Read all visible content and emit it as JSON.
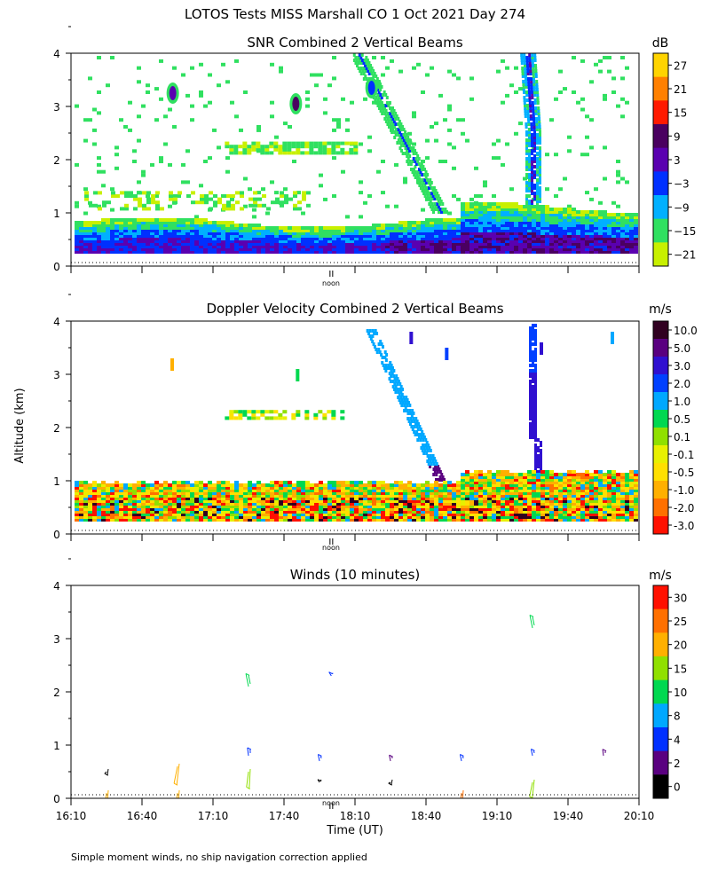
{
  "main_title": "LOTOS Tests MISS Marshall CO   1 Oct 2021 Day 274",
  "y_axis_label": "Altitude (km)",
  "x_axis_label": "Time (UT)",
  "noon_label": "noon",
  "footnote": "Simple moment winds, no ship navigation correction applied",
  "chart_data": [
    {
      "type": "heatmap",
      "title": "SNR Combined 2 Vertical Beams",
      "colorbar_unit": "dB",
      "colorbar_labels": [
        "27",
        "21",
        "15",
        "9",
        "3",
        "−3",
        "−9",
        "−15",
        "−21"
      ],
      "colorbar_colors": [
        "#ffd400",
        "#ff8000",
        "#ff1a00",
        "#4a0060",
        "#5a00b0",
        "#0030ff",
        "#00b0ff",
        "#30e060",
        "#c8f000"
      ],
      "ylim": [
        0,
        4
      ],
      "yticks": [
        "0",
        "1",
        "2",
        "3",
        "4"
      ],
      "xlim": [
        "16:10",
        "20:10"
      ],
      "description_features": [
        {
          "kind": "layer",
          "ymin": 0.25,
          "ymax": 0.8,
          "values_db": [
            -12,
            3,
            9,
            3
          ]
        },
        {
          "kind": "plume",
          "time": "18:45",
          "ymin": 1.0,
          "ymax": 3.9,
          "value_db": -18
        },
        {
          "kind": "plume",
          "time": "19:24",
          "ymin": 0.9,
          "ymax": 3.9,
          "value_db": -12
        },
        {
          "kind": "layer",
          "ymin": 2.1,
          "ymax": 2.3,
          "value_db": -20
        },
        {
          "kind": "layer",
          "ymin": 1.1,
          "ymax": 1.4,
          "value_db": -20
        },
        {
          "kind": "blob",
          "time": "16:53",
          "y": 3.2,
          "value_db": 3
        },
        {
          "kind": "blob",
          "time": "17:45",
          "y": 3.0,
          "value_db": 9
        }
      ]
    },
    {
      "type": "heatmap",
      "title": "Doppler Velocity Combined 2 Vertical Beams",
      "colorbar_unit": "m/s",
      "colorbar_labels": [
        "10.0",
        "5.0",
        "3.0",
        "2.0",
        "1.0",
        "0.5",
        "0.1",
        "-0.1",
        "-0.5",
        "-1.0",
        "-2.0",
        "-3.0"
      ],
      "colorbar_colors": [
        "#300020",
        "#5a0080",
        "#3010d0",
        "#0040ff",
        "#00a8ff",
        "#00d850",
        "#90e000",
        "#e8f000",
        "#ffe000",
        "#ffb000",
        "#ff7000",
        "#ff1000"
      ],
      "ylim": [
        0,
        4
      ],
      "yticks": [
        "0",
        "1",
        "2",
        "3",
        "4"
      ],
      "xlim": [
        "16:10",
        "20:10"
      ],
      "description_features": [
        {
          "kind": "layer",
          "ymin": 0.25,
          "ymax": 0.8,
          "values_ms": [
            -0.5,
            -1.0,
            0.1,
            -2.0
          ]
        },
        {
          "kind": "plume",
          "time": "18:45",
          "ymin": 1.0,
          "ymax": 3.8,
          "value_ms": 1.0
        },
        {
          "kind": "plume",
          "time": "19:25",
          "ymin": 0.9,
          "ymax": 3.9,
          "value_ms": 3.0
        }
      ]
    },
    {
      "type": "scatter",
      "title": "Winds (10 minutes)",
      "colorbar_unit": "m/s",
      "colorbar_labels": [
        "30",
        "25",
        "20",
        "15",
        "10",
        "8",
        "4",
        "2",
        "0"
      ],
      "colorbar_colors": [
        "#ff1000",
        "#ff7000",
        "#ffb000",
        "#90e000",
        "#00d850",
        "#00a8ff",
        "#0030ff",
        "#5a0080",
        "#000000"
      ],
      "ylim": [
        0,
        4
      ],
      "yticks": [
        "0",
        "1",
        "2",
        "3",
        "4"
      ],
      "xlim": [
        "16:10",
        "20:10"
      ],
      "xticks": [
        "16:10",
        "16:40",
        "17:10",
        "17:40",
        "18:10",
        "18:40",
        "19:10",
        "19:40",
        "20:10"
      ],
      "wind_profiles_hhmm": [
        "16:25",
        "16:55",
        "17:25",
        "17:55",
        "18:25",
        "18:55",
        "19:25",
        "19:55"
      ],
      "wind_samples": [
        {
          "time": "16:25",
          "height_km": 0.1,
          "speed": 22,
          "dir_deg": 200
        },
        {
          "time": "16:25",
          "height_km": 0.5,
          "speed": 0.5,
          "dir_deg": 250
        },
        {
          "time": "16:55",
          "height_km": 0.1,
          "speed": 22,
          "dir_deg": 200
        },
        {
          "time": "16:55",
          "height_km": 0.6,
          "speed": 18,
          "dir_deg": 210
        },
        {
          "time": "17:25",
          "height_km": 0.5,
          "speed": 14,
          "dir_deg": 200
        },
        {
          "time": "17:25",
          "height_km": 0.8,
          "speed": 4,
          "dir_deg": 340
        },
        {
          "time": "17:25",
          "height_km": 2.1,
          "speed": 12,
          "dir_deg": 330
        },
        {
          "time": "17:55",
          "height_km": 0.3,
          "speed": 0.5,
          "dir_deg": 300
        },
        {
          "time": "17:55",
          "height_km": 0.7,
          "speed": 3,
          "dir_deg": 330
        },
        {
          "time": "18:00",
          "height_km": 2.3,
          "speed": 3,
          "dir_deg": 300
        },
        {
          "time": "18:25",
          "height_km": 0.3,
          "speed": 0.5,
          "dir_deg": 260
        },
        {
          "time": "18:25",
          "height_km": 0.7,
          "speed": 2,
          "dir_deg": 330
        },
        {
          "time": "18:55",
          "height_km": 0.1,
          "speed": 24,
          "dir_deg": 200
        },
        {
          "time": "18:55",
          "height_km": 0.7,
          "speed": 3,
          "dir_deg": 330
        },
        {
          "time": "19:25",
          "height_km": 0.3,
          "speed": 14,
          "dir_deg": 210
        },
        {
          "time": "19:25",
          "height_km": 0.8,
          "speed": 3,
          "dir_deg": 330
        },
        {
          "time": "19:25",
          "height_km": 3.2,
          "speed": 12,
          "dir_deg": 330
        },
        {
          "time": "19:55",
          "height_km": 0.8,
          "speed": 2,
          "dir_deg": 340
        }
      ]
    }
  ]
}
